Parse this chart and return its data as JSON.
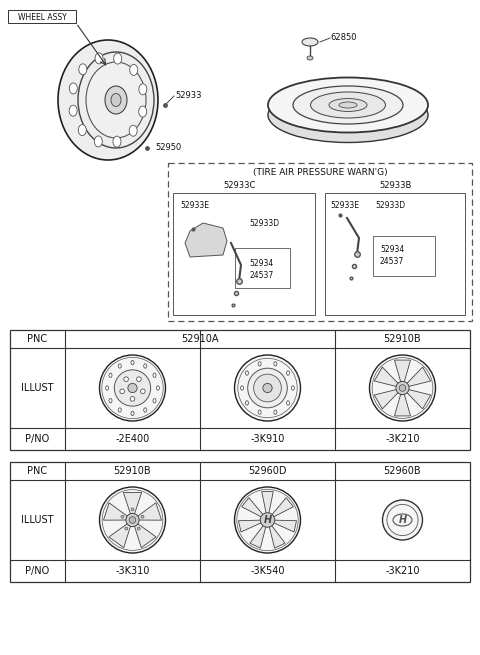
{
  "bg_color": "#ffffff",
  "label_wheel_assy": "WHEEL ASSY",
  "label_62850": "62850",
  "label_52933": "52933",
  "label_52950": "52950",
  "label_tire_warn": "(TIRE AIR PRESSURE WARN'G)",
  "label_52933C": "52933C",
  "label_52933B": "52933B",
  "label_52933E": "52933E",
  "label_52933D": "52933D",
  "label_52934": "52934",
  "label_24537": "24537",
  "t1_pnc": [
    "PNC",
    "52910A",
    "52910B"
  ],
  "t1_pno": [
    "P/NO",
    "-2E400",
    "-3K910",
    "-3K210"
  ],
  "t2_pnc": [
    "PNC",
    "52910B",
    "52960D",
    "52960B"
  ],
  "t2_pno": [
    "P/NO",
    "-3K310",
    "-3K540",
    "-3K210"
  ],
  "row_label_pnc": "PNC",
  "row_label_illust": "ILLUST",
  "row_label_pno": "P/NO"
}
